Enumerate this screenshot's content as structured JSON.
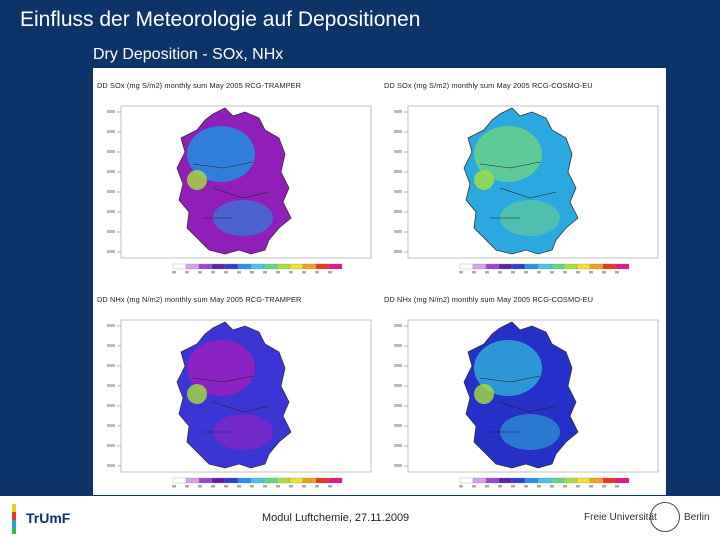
{
  "slide": {
    "title": "Einfluss der Meteorologie auf Depositionen",
    "subtitle": "Dry Deposition - SOx, NHx"
  },
  "panels": [
    {
      "title": "DD SOx (mg S/m2) monthly sum May 2005 RCG-TRAMPER",
      "dominant_color": "#8f1fb8",
      "accent_color": "#1f8fe0"
    },
    {
      "title": "DD SOx (mg S/m2) monthly sum May 2005 RCG-COSMO-EU",
      "dominant_color": "#2ba8e0",
      "accent_color": "#66d08a"
    },
    {
      "title": "DD NHx (mg N/m2) monthly sum May 2005 RCG-TRAMPER",
      "dominant_color": "#3b35d6",
      "accent_color": "#9a1fc0"
    },
    {
      "title": "DD NHx (mg N/m2) monthly sum May 2005 RCG-COSMO-EU",
      "dominant_color": "#2430c8",
      "accent_color": "#2fa8d8"
    }
  ],
  "colorbar": {
    "colors": [
      "#ffffff",
      "#d7a0e8",
      "#a044d0",
      "#5a1fb0",
      "#2f3ad8",
      "#2a8fe8",
      "#3fc8e8",
      "#5fd68a",
      "#a8e03a",
      "#f0e030",
      "#f0a020",
      "#e83820",
      "#e01890"
    ]
  },
  "footer": {
    "logo_left": "TrUmF",
    "center_text": "Modul Luftchemie, 27.11.2009",
    "logo_right_1": "Freie Universität",
    "logo_right_2": "Berlin"
  }
}
